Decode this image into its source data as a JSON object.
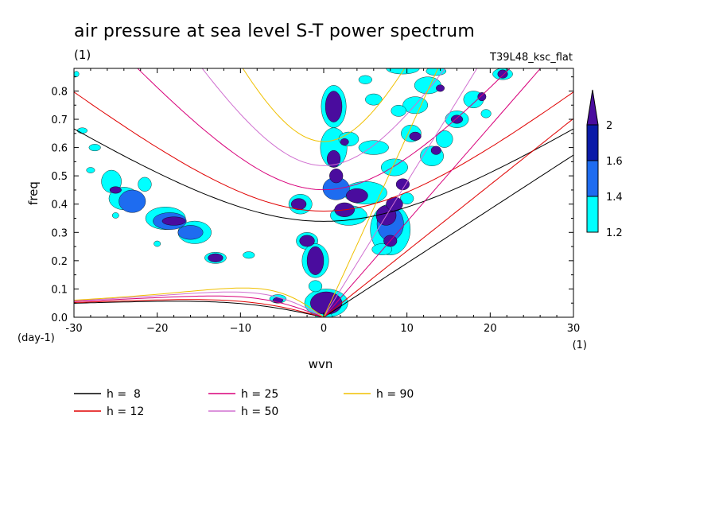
{
  "chart_data": {
    "type": "contour",
    "title": "air pressure at sea level S-T power spectrum",
    "units": "(1)",
    "run_label": "T39L48_ksc_flat",
    "xlabel": "wvn",
    "ylabel": "freq",
    "x_units": "(1)",
    "y_units": "(day-1)",
    "xlim": [
      -30,
      30
    ],
    "ylim": [
      0,
      0.88
    ],
    "x_ticks": [
      -30,
      -20,
      -10,
      0,
      10,
      20,
      30
    ],
    "x_tick_labels": [
      "-30",
      "−20",
      "−10",
      "0",
      "10",
      "20",
      "30"
    ],
    "y_ticks": [
      0,
      0.1,
      0.2,
      0.3,
      0.4,
      0.5,
      0.6,
      0.7,
      0.8
    ],
    "y_tick_labels": [
      "0.0",
      "0.1",
      "0.2",
      "0.3",
      "0.4",
      "0.5",
      "0.6",
      "0.7",
      "0.8"
    ],
    "colorbar": {
      "levels": [
        1.2,
        1.4,
        1.6,
        2
      ],
      "labels": [
        "1.2",
        "1.4",
        "1.6",
        "2"
      ],
      "colors": [
        "#00ffff",
        "#1e6cf0",
        "#0a1aa8",
        "#4a0c9e"
      ]
    },
    "dispersion_curves": [
      {
        "name": "h =  8",
        "h": 8,
        "color": "#000000"
      },
      {
        "name": "h = 12",
        "h": 12,
        "color": "#e00000"
      },
      {
        "name": "h = 25",
        "h": 25,
        "color": "#d8007a"
      },
      {
        "name": "h = 50",
        "h": 50,
        "color": "#d070d0"
      },
      {
        "name": "h = 90",
        "h": 90,
        "color": "#f0c000"
      }
    ],
    "contour_features": [
      {
        "level": 2,
        "x": 1.2,
        "y": 0.745,
        "rx": 1.0,
        "ry": 0.055
      },
      {
        "level": 2,
        "x": 1.2,
        "y": 0.56,
        "rx": 0.8,
        "ry": 0.03
      },
      {
        "level": 2,
        "x": 1.5,
        "y": 0.5,
        "rx": 0.8,
        "ry": 0.025
      },
      {
        "level": 2,
        "x": -3.0,
        "y": 0.4,
        "rx": 0.9,
        "ry": 0.02
      },
      {
        "level": 2,
        "x": -2.0,
        "y": 0.27,
        "rx": 0.9,
        "ry": 0.02
      },
      {
        "level": 2,
        "x": -1.0,
        "y": 0.2,
        "rx": 1.0,
        "ry": 0.05
      },
      {
        "level": 2,
        "x": 0.3,
        "y": 0.05,
        "rx": 1.9,
        "ry": 0.04
      },
      {
        "level": 2,
        "x": 2.5,
        "y": 0.38,
        "rx": 1.2,
        "ry": 0.025
      },
      {
        "level": 2,
        "x": 4.0,
        "y": 0.43,
        "rx": 1.3,
        "ry": 0.025
      },
      {
        "level": 2,
        "x": 7.5,
        "y": 0.36,
        "rx": 1.2,
        "ry": 0.035
      },
      {
        "level": 2,
        "x": 8.5,
        "y": 0.4,
        "rx": 1.0,
        "ry": 0.025
      },
      {
        "level": 2,
        "x": 8.0,
        "y": 0.27,
        "rx": 0.8,
        "ry": 0.02
      },
      {
        "level": 2,
        "x": 9.5,
        "y": 0.47,
        "rx": 0.8,
        "ry": 0.02
      },
      {
        "level": 2,
        "x": 11.0,
        "y": 0.64,
        "rx": 0.7,
        "ry": 0.015
      },
      {
        "level": 2,
        "x": 13.5,
        "y": 0.59,
        "rx": 0.6,
        "ry": 0.015
      },
      {
        "level": 2,
        "x": 16.0,
        "y": 0.7,
        "rx": 0.7,
        "ry": 0.015
      },
      {
        "level": 2,
        "x": 21.5,
        "y": 0.86,
        "rx": 0.6,
        "ry": 0.015
      },
      {
        "level": 2,
        "x": 19.0,
        "y": 0.78,
        "rx": 0.5,
        "ry": 0.015
      },
      {
        "level": 2,
        "x": -13.0,
        "y": 0.21,
        "rx": 0.9,
        "ry": 0.015
      },
      {
        "level": 2,
        "x": -25.0,
        "y": 0.45,
        "rx": 0.7,
        "ry": 0.012
      },
      {
        "level": 2,
        "x": -18.0,
        "y": 0.34,
        "rx": 1.4,
        "ry": 0.015
      },
      {
        "level": 2,
        "x": 2.5,
        "y": 0.62,
        "rx": 0.5,
        "ry": 0.012
      },
      {
        "level": 2,
        "x": 14.0,
        "y": 0.81,
        "rx": 0.5,
        "ry": 0.012
      },
      {
        "level": 2,
        "x": -5.5,
        "y": 0.06,
        "rx": 0.6,
        "ry": 0.01
      },
      {
        "level": 1.4,
        "x": -23.0,
        "y": 0.41,
        "rx": 1.6,
        "ry": 0.04
      },
      {
        "level": 1.4,
        "x": -18.5,
        "y": 0.34,
        "rx": 2.0,
        "ry": 0.03
      },
      {
        "level": 1.4,
        "x": -16.0,
        "y": 0.3,
        "rx": 1.5,
        "ry": 0.025
      },
      {
        "level": 1.4,
        "x": 1.5,
        "y": 0.455,
        "rx": 1.6,
        "ry": 0.04
      },
      {
        "level": 1.4,
        "x": 8.0,
        "y": 0.33,
        "rx": 1.6,
        "ry": 0.06
      },
      {
        "level": 1.2,
        "x": -29.0,
        "y": 0.66,
        "rx": 0.6,
        "ry": 0.01
      },
      {
        "level": 1.2,
        "x": -27.5,
        "y": 0.6,
        "rx": 0.7,
        "ry": 0.012
      },
      {
        "level": 1.2,
        "x": -25.5,
        "y": 0.48,
        "rx": 1.2,
        "ry": 0.04
      },
      {
        "level": 1.2,
        "x": -21.5,
        "y": 0.47,
        "rx": 0.8,
        "ry": 0.025
      },
      {
        "level": 1.2,
        "x": -24.0,
        "y": 0.42,
        "rx": 1.8,
        "ry": 0.04
      },
      {
        "level": 1.2,
        "x": -19.0,
        "y": 0.35,
        "rx": 2.4,
        "ry": 0.04
      },
      {
        "level": 1.2,
        "x": -15.5,
        "y": 0.3,
        "rx": 2.0,
        "ry": 0.04
      },
      {
        "level": 1.2,
        "x": -13.0,
        "y": 0.21,
        "rx": 1.3,
        "ry": 0.02
      },
      {
        "level": 1.2,
        "x": -9.0,
        "y": 0.22,
        "rx": 0.7,
        "ry": 0.012
      },
      {
        "level": 1.2,
        "x": -5.5,
        "y": 0.065,
        "rx": 1.0,
        "ry": 0.015
      },
      {
        "level": 1.2,
        "x": -2.8,
        "y": 0.4,
        "rx": 1.4,
        "ry": 0.035
      },
      {
        "level": 1.2,
        "x": -2.0,
        "y": 0.27,
        "rx": 1.3,
        "ry": 0.03
      },
      {
        "level": 1.2,
        "x": 1.2,
        "y": 0.6,
        "rx": 1.6,
        "ry": 0.07
      },
      {
        "level": 1.2,
        "x": 1.2,
        "y": 0.745,
        "rx": 1.5,
        "ry": 0.075
      },
      {
        "level": 1.2,
        "x": 5.0,
        "y": 0.44,
        "rx": 2.6,
        "ry": 0.04
      },
      {
        "level": 1.2,
        "x": 3.0,
        "y": 0.36,
        "rx": 2.2,
        "ry": 0.035
      },
      {
        "level": 1.2,
        "x": 8.0,
        "y": 0.31,
        "rx": 2.4,
        "ry": 0.09
      },
      {
        "level": 1.2,
        "x": 3.0,
        "y": 0.63,
        "rx": 1.2,
        "ry": 0.025
      },
      {
        "level": 1.2,
        "x": 6.0,
        "y": 0.6,
        "rx": 1.8,
        "ry": 0.025
      },
      {
        "level": 1.2,
        "x": 8.5,
        "y": 0.53,
        "rx": 1.6,
        "ry": 0.03
      },
      {
        "level": 1.2,
        "x": 10.5,
        "y": 0.65,
        "rx": 1.2,
        "ry": 0.03
      },
      {
        "level": 1.2,
        "x": 11.0,
        "y": 0.75,
        "rx": 1.5,
        "ry": 0.03
      },
      {
        "level": 1.2,
        "x": 12.5,
        "y": 0.82,
        "rx": 1.6,
        "ry": 0.03
      },
      {
        "level": 1.2,
        "x": 13.0,
        "y": 0.57,
        "rx": 1.4,
        "ry": 0.035
      },
      {
        "level": 1.2,
        "x": 14.5,
        "y": 0.63,
        "rx": 1.0,
        "ry": 0.03
      },
      {
        "level": 1.2,
        "x": 16.0,
        "y": 0.7,
        "rx": 1.4,
        "ry": 0.03
      },
      {
        "level": 1.2,
        "x": 18.0,
        "y": 0.77,
        "rx": 1.2,
        "ry": 0.03
      },
      {
        "level": 1.2,
        "x": 21.5,
        "y": 0.86,
        "rx": 1.2,
        "ry": 0.02
      },
      {
        "level": 1.2,
        "x": 9.5,
        "y": 0.88,
        "rx": 2.0,
        "ry": 0.02
      },
      {
        "level": 1.2,
        "x": 13.5,
        "y": 0.87,
        "rx": 1.2,
        "ry": 0.015
      },
      {
        "level": 1.2,
        "x": 6.0,
        "y": 0.77,
        "rx": 1.0,
        "ry": 0.02
      },
      {
        "level": 1.2,
        "x": 9.0,
        "y": 0.73,
        "rx": 0.9,
        "ry": 0.02
      },
      {
        "level": 1.2,
        "x": 5.0,
        "y": 0.84,
        "rx": 0.8,
        "ry": 0.015
      },
      {
        "level": 1.2,
        "x": -1.0,
        "y": 0.2,
        "rx": 1.6,
        "ry": 0.06
      },
      {
        "level": 1.2,
        "x": 0.3,
        "y": 0.05,
        "rx": 2.6,
        "ry": 0.05
      },
      {
        "level": 1.2,
        "x": -1.0,
        "y": 0.11,
        "rx": 0.8,
        "ry": 0.02
      },
      {
        "level": 1.2,
        "x": 0.0,
        "y": 0.005,
        "rx": 1.0,
        "ry": 0.012
      },
      {
        "level": 1.2,
        "x": 7.0,
        "y": 0.24,
        "rx": 1.2,
        "ry": 0.02
      },
      {
        "level": 1.2,
        "x": 10.0,
        "y": 0.42,
        "rx": 0.8,
        "ry": 0.02
      },
      {
        "level": 1.2,
        "x": 19.5,
        "y": 0.72,
        "rx": 0.6,
        "ry": 0.015
      },
      {
        "level": 1.2,
        "x": -29.7,
        "y": 0.86,
        "rx": 0.3,
        "ry": 0.01
      },
      {
        "level": 1.2,
        "x": -28.0,
        "y": 0.52,
        "rx": 0.5,
        "ry": 0.01
      },
      {
        "level": 1.2,
        "x": -25.0,
        "y": 0.36,
        "rx": 0.4,
        "ry": 0.01
      },
      {
        "level": 1.2,
        "x": -20.0,
        "y": 0.26,
        "rx": 0.4,
        "ry": 0.01
      }
    ]
  },
  "legend": {
    "items": [
      {
        "label": "h =  8",
        "color": "#000000"
      },
      {
        "label": "h = 12",
        "color": "#e00000"
      },
      {
        "label": "h = 25",
        "color": "#d8007a"
      },
      {
        "label": "h = 50",
        "color": "#d070d0"
      },
      {
        "label": "h = 90",
        "color": "#f0c000"
      }
    ]
  }
}
